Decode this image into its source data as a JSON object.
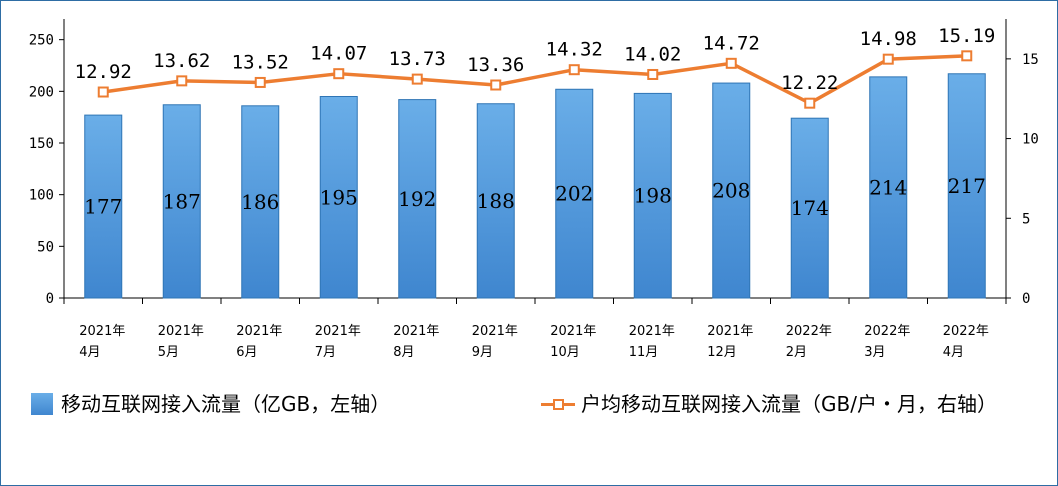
{
  "chart_data": {
    "type": "bar",
    "categories": [
      [
        "2021年",
        "4月"
      ],
      [
        "2021年",
        "5月"
      ],
      [
        "2021年",
        "6月"
      ],
      [
        "2021年",
        "7月"
      ],
      [
        "2021年",
        "8月"
      ],
      [
        "2021年",
        "9月"
      ],
      [
        "2021年",
        "10月"
      ],
      [
        "2021年",
        "11月"
      ],
      [
        "2021年",
        "12月"
      ],
      [
        "2022年",
        "2月"
      ],
      [
        "2022年",
        "3月"
      ],
      [
        "2022年",
        "4月"
      ]
    ],
    "series": [
      {
        "name": "移动互联网接入流量（亿GB，左轴）",
        "type": "bar",
        "axis": "left",
        "values": [
          177,
          187,
          186,
          195,
          192,
          188,
          202,
          198,
          208,
          174,
          214,
          217
        ],
        "labels": [
          "177",
          "187",
          "186",
          "195",
          "192",
          "188",
          "202",
          "198",
          "208",
          "174",
          "214",
          "217"
        ]
      },
      {
        "name": "户均移动互联网接入流量（GB/户・月，右轴）",
        "type": "line",
        "axis": "right",
        "values": [
          12.92,
          13.62,
          13.52,
          14.07,
          13.73,
          13.36,
          14.32,
          14.02,
          14.72,
          12.22,
          14.98,
          15.19
        ],
        "labels": [
          "12.92",
          "13.62",
          "13.52",
          "14.07",
          "13.73",
          "13.36",
          "14.32",
          "14.02",
          "14.72",
          "12.22",
          "14.98",
          "15.19"
        ]
      }
    ],
    "y_left": {
      "lim": [
        0,
        270
      ],
      "ticks": [
        0,
        50,
        100,
        150,
        200,
        250
      ]
    },
    "y_right": {
      "lim": [
        0,
        17.5
      ],
      "ticks": [
        0,
        5,
        10,
        15
      ]
    },
    "colors": {
      "bar_top": "#6aaee8",
      "bar_bottom": "#3f86cf",
      "line": "#ed7d31",
      "axis": "#000000",
      "frame": "#2e6da4"
    },
    "grid": false,
    "legend_position": "bottom"
  },
  "legend": {
    "bar_label": "移动互联网接入流量（亿GB，左轴）",
    "line_label": "户均移动互联网接入流量（GB/户・月，右轴）"
  }
}
